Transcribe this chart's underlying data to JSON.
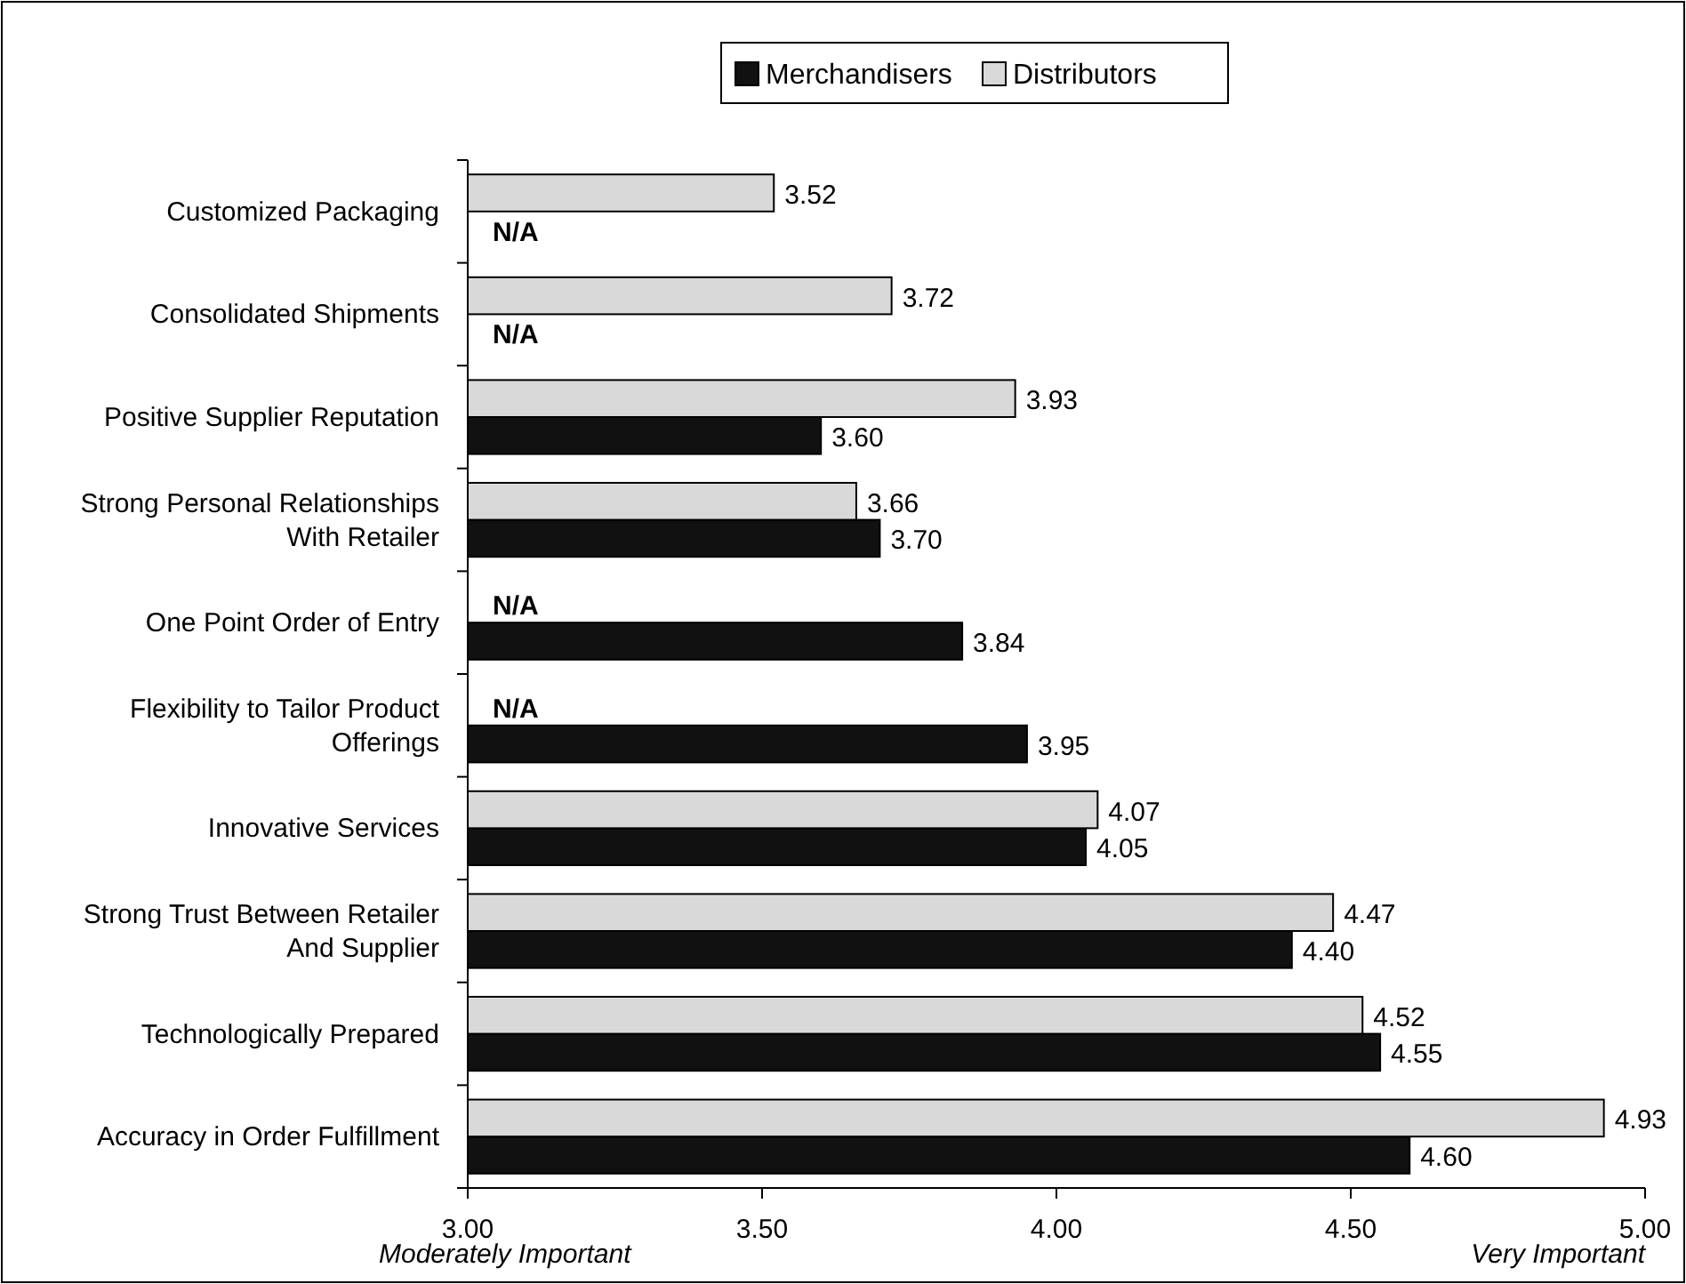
{
  "chart_data": {
    "type": "bar",
    "orientation": "horizontal",
    "categories": [
      "Customized Packaging",
      "Consolidated Shipments",
      "Positive Supplier Reputation",
      "Strong Personal Relationships With Retailer",
      "One Point Order of Entry",
      "Flexibility to Tailor Product Offerings",
      "Innovative Services",
      "Strong Trust Between Retailer And Supplier",
      "Technologically Prepared",
      "Accuracy in Order Fulfillment"
    ],
    "series": [
      {
        "name": "Merchandisers",
        "color": "#111111",
        "values": [
          null,
          null,
          3.6,
          3.7,
          3.84,
          3.95,
          4.05,
          4.4,
          4.55,
          4.6
        ],
        "value_labels": [
          "N/A",
          "N/A",
          "3.60",
          "3.70",
          "3.84",
          "3.95",
          "4.05",
          "4.40",
          "4.55",
          "4.60"
        ]
      },
      {
        "name": "Distributors",
        "color": "#d9d9d9",
        "values": [
          3.52,
          3.72,
          3.93,
          3.66,
          null,
          null,
          4.07,
          4.47,
          4.52,
          4.93
        ],
        "value_labels": [
          "3.52",
          "3.72",
          "3.93",
          "3.66",
          "N/A",
          "N/A",
          "4.07",
          "4.47",
          "4.52",
          "4.93"
        ]
      }
    ],
    "xlim": [
      3,
      5
    ],
    "xticks": [
      {
        "value": 3,
        "label": "3.00"
      },
      {
        "value": 3.5,
        "label": "3.50"
      },
      {
        "value": 4,
        "label": "4.00"
      },
      {
        "value": 4.5,
        "label": "4.50"
      },
      {
        "value": 5,
        "label": "5.00"
      }
    ],
    "grid": false,
    "legend": "top",
    "annotations": [
      "Moderately Important",
      "Very Important"
    ]
  }
}
